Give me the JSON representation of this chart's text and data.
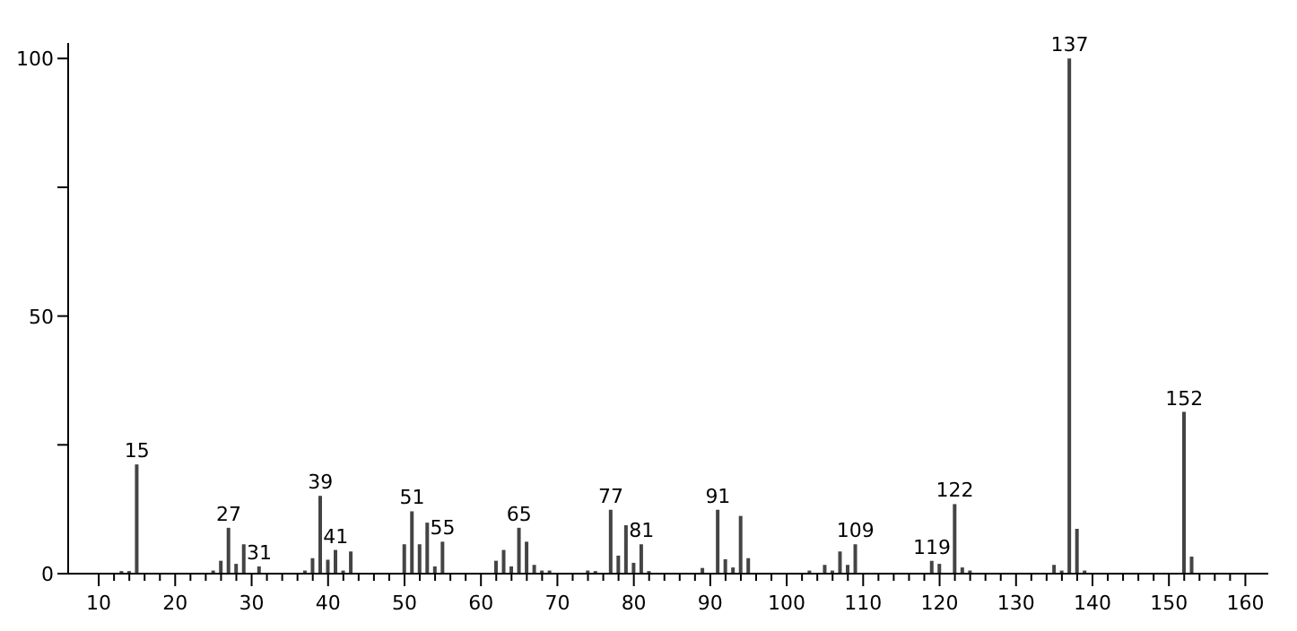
{
  "chart_data": {
    "type": "bar",
    "x": [
      13,
      14,
      15,
      25,
      26,
      27,
      28,
      29,
      31,
      37,
      38,
      39,
      40,
      41,
      42,
      43,
      50,
      51,
      52,
      53,
      54,
      55,
      62,
      63,
      64,
      65,
      66,
      67,
      68,
      69,
      74,
      75,
      77,
      78,
      79,
      80,
      81,
      82,
      89,
      91,
      92,
      93,
      94,
      95,
      103,
      105,
      106,
      107,
      108,
      109,
      119,
      120,
      122,
      123,
      124,
      135,
      136,
      137,
      138,
      139,
      152,
      153
    ],
    "values": [
      0.5,
      0.5,
      21.2,
      0.6,
      2.5,
      8.9,
      1.9,
      5.7,
      1.4,
      0.6,
      3,
      15.1,
      2.7,
      4.6,
      0.6,
      4.3,
      5.7,
      12.1,
      5.7,
      9.9,
      1.4,
      6.2,
      2.5,
      4.6,
      1.4,
      8.9,
      6.2,
      1.7,
      0.6,
      0.6,
      0.6,
      0.5,
      12.4,
      3.5,
      9.4,
      2.1,
      5.7,
      0.5,
      1.1,
      12.4,
      2.8,
      1.2,
      11.2,
      3,
      0.6,
      1.7,
      0.6,
      4.3,
      1.7,
      5.7,
      2.5,
      1.9,
      13.5,
      1.2,
      0.6,
      1.7,
      0.6,
      100,
      8.7,
      0.6,
      31.4,
      3.3
    ],
    "annotations": [
      {
        "text": "15",
        "x": 15,
        "y": 21.2
      },
      {
        "text": "27",
        "x": 27,
        "y": 8.9
      },
      {
        "text": "31",
        "x": 31,
        "y": 1.4
      },
      {
        "text": "39",
        "x": 39,
        "y": 15.1
      },
      {
        "text": "41",
        "x": 41,
        "y": 4.6
      },
      {
        "text": "51",
        "x": 51,
        "y": 12.1
      },
      {
        "text": "55",
        "x": 55,
        "y": 6.2
      },
      {
        "text": "65",
        "x": 65,
        "y": 8.9
      },
      {
        "text": "77",
        "x": 77,
        "y": 12.4
      },
      {
        "text": "81",
        "x": 81,
        "y": 5.7
      },
      {
        "text": "91",
        "x": 91,
        "y": 12.4
      },
      {
        "text": "109",
        "x": 109,
        "y": 5.7
      },
      {
        "text": "119",
        "x": 119,
        "y": 2.5
      },
      {
        "text": "122",
        "x": 122,
        "y": 13.5
      },
      {
        "text": "137",
        "x": 137,
        "y": 100
      },
      {
        "text": "152",
        "x": 152,
        "y": 31.4
      }
    ],
    "color": "#444444",
    "xlim": [
      6,
      163
    ],
    "xticks": [
      10,
      {
        "value": 12,
        "label": null
      },
      {
        "value": 14,
        "label": null
      },
      {
        "value": 16,
        "label": null
      },
      {
        "value": 18,
        "label": null
      },
      20,
      {
        "value": 22,
        "label": null
      },
      {
        "value": 24,
        "label": null
      },
      {
        "value": 26,
        "label": null
      },
      {
        "value": 28,
        "label": null
      },
      30,
      {
        "value": 32,
        "label": null
      },
      {
        "value": 34,
        "label": null
      },
      {
        "value": 36,
        "label": null
      },
      {
        "value": 38,
        "label": null
      },
      40,
      {
        "value": 42,
        "label": null
      },
      {
        "value": 44,
        "label": null
      },
      {
        "value": 46,
        "label": null
      },
      {
        "value": 48,
        "label": null
      },
      50,
      {
        "value": 52,
        "label": null
      },
      {
        "value": 54,
        "label": null
      },
      {
        "value": 56,
        "label": null
      },
      {
        "value": 58,
        "label": null
      },
      60,
      {
        "value": 62,
        "label": null
      },
      {
        "value": 64,
        "label": null
      },
      {
        "value": 66,
        "label": null
      },
      {
        "value": 68,
        "label": null
      },
      70,
      {
        "value": 72,
        "label": null
      },
      {
        "value": 74,
        "label": null
      },
      {
        "value": 76,
        "label": null
      },
      {
        "value": 78,
        "label": null
      },
      80,
      {
        "value": 82,
        "label": null
      },
      {
        "value": 84,
        "label": null
      },
      {
        "value": 86,
        "label": null
      },
      {
        "value": 88,
        "label": null
      },
      90,
      {
        "value": 92,
        "label": null
      },
      {
        "value": 94,
        "label": null
      },
      {
        "value": 96,
        "label": null
      },
      {
        "value": 98,
        "label": null
      },
      100,
      {
        "value": 102,
        "label": null
      },
      {
        "value": 104,
        "label": null
      },
      {
        "value": 106,
        "label": null
      },
      {
        "value": 108,
        "label": null
      },
      110,
      {
        "value": 112,
        "label": null
      },
      {
        "value": 114,
        "label": null
      },
      {
        "value": 116,
        "label": null
      },
      {
        "value": 118,
        "label": null
      },
      120,
      {
        "value": 122,
        "label": null
      },
      {
        "value": 124,
        "label": null
      },
      {
        "value": 126,
        "label": null
      },
      {
        "value": 128,
        "label": null
      },
      130,
      {
        "value": 132,
        "label": null
      },
      {
        "value": 134,
        "label": null
      },
      {
        "value": 136,
        "label": null
      },
      {
        "value": 138,
        "label": null
      },
      140,
      {
        "value": 142,
        "label": null
      },
      {
        "value": 144,
        "label": null
      },
      {
        "value": 146,
        "label": null
      },
      {
        "value": 148,
        "label": null
      },
      150,
      {
        "value": 152,
        "label": null
      },
      {
        "value": 154,
        "label": null
      },
      {
        "value": 156,
        "label": null
      },
      {
        "value": 158,
        "label": null
      },
      160
    ],
    "ylim": [
      0,
      103
    ],
    "yticks": [
      0,
      {
        "value": 25,
        "label": null
      },
      50,
      {
        "value": 75,
        "label": null
      },
      100
    ]
  }
}
